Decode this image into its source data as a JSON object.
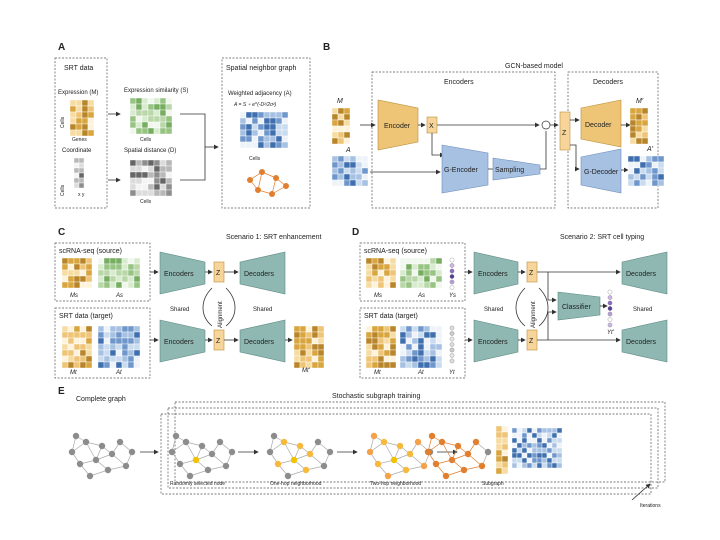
{
  "panels": {
    "a": {
      "letter": "A",
      "srt_data": "SRT data",
      "expression": "Expression (M)",
      "genes": "Genes",
      "cells": "Cells",
      "coordinate": "Coordinate",
      "x_y": "x  y",
      "expr_sim": "Expression similarity (S)",
      "spatial_dist": "Spatial distance (D)",
      "graph_title": "Spatial neighbor graph",
      "weighted_adj": "Weighted adjacency (A)",
      "formula": "A = S ∘ e^(-D²/2σ²)"
    },
    "b": {
      "letter": "B",
      "title": "GCN-based model",
      "encoders": "Encoders",
      "decoders": "Decoders",
      "m": "M",
      "a": "A",
      "encoder": "Encoder",
      "x": "X",
      "g_encoder": "G-Encoder",
      "sampling": "Sampling",
      "z": "Z",
      "decoder": "Decoder",
      "g_decoder": "G-Decoder",
      "m_prime": "M′",
      "a_prime": "A′"
    },
    "c": {
      "letter": "C",
      "scenario": "Scenario 1: SRT enhancement",
      "source": "scRNA-seq (source)",
      "target": "SRT data (target)",
      "ms": "Ms",
      "as": "As",
      "mt": "Mt",
      "at": "At",
      "encoders": "Encoders",
      "decoders": "Decoders",
      "shared": "Shared",
      "alignment": "Alignment",
      "z": "Z",
      "mt_prime": "Mt′"
    },
    "d": {
      "letter": "D",
      "scenario": "Scenario 2: SRT cell typing",
      "source": "scRNA-seq (source)",
      "target": "SRT data (target)",
      "ms": "Ms",
      "as": "As",
      "ys": "Ys",
      "mt": "Mt",
      "at": "At",
      "yt": "Yt",
      "encoders": "Encoders",
      "decoders": "Decoders",
      "shared": "Shared",
      "alignment": "Alignment",
      "classifier": "Classifier",
      "z": "Z",
      "yt_prime": "Yt′"
    },
    "e": {
      "letter": "E",
      "complete_graph": "Complete graph",
      "stochastic": "Stochastic subgraph training",
      "random_node": "Randomly selected node",
      "one_hop": "One-hop neighborhood",
      "two_hop": "Two-hop neighborhood",
      "subgraph": "Subgraph",
      "iterations": "Iterations"
    }
  },
  "colors": {
    "gold": "#eec476",
    "teal": "#8fb8b2",
    "blue": "#a7c1e3",
    "green": "#b9d7a8",
    "node": "#999999",
    "orange": "#e07f2f"
  }
}
